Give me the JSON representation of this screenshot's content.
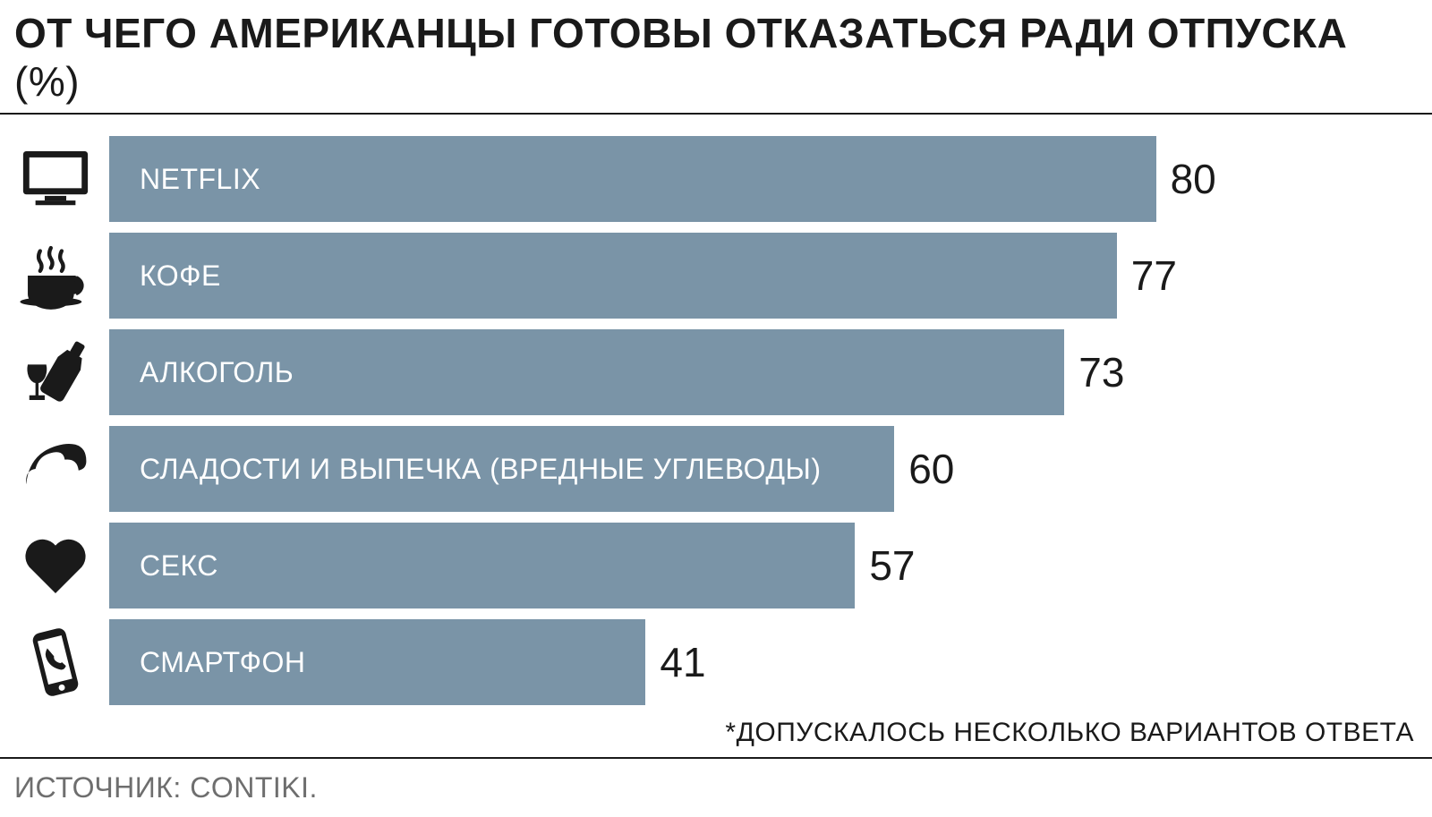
{
  "chart": {
    "type": "bar",
    "title_main": "ОТ ЧЕГО АМЕРИКАНЦЫ ГОТОВЫ ОТКАЗАТЬСЯ РАДИ ОТПУСКА",
    "title_unit": "(%)",
    "title_fontsize": 46,
    "title_color": "#1a1a1a",
    "bar_color": "#7a94a7",
    "bar_label_color": "#ffffff",
    "bar_label_fontsize": 32,
    "value_fontsize": 46,
    "value_color": "#1a1a1a",
    "icon_color": "#1a1a1a",
    "xmax": 100,
    "background_color": "#ffffff",
    "rows": [
      {
        "icon": "tv",
        "label": "NETFLIX",
        "value": 80
      },
      {
        "icon": "coffee",
        "label": "КОФЕ",
        "value": 77
      },
      {
        "icon": "wine",
        "label": "АЛКОГОЛЬ",
        "value": 73
      },
      {
        "icon": "croissant",
        "label": "СЛАДОСТИ И ВЫПЕЧКА (ВРЕДНЫЕ УГЛЕВОДЫ)",
        "value": 60
      },
      {
        "icon": "heart",
        "label": "СЕКС",
        "value": 57
      },
      {
        "icon": "phone",
        "label": "СМАРТФОН",
        "value": 41
      }
    ],
    "footnote": "*ДОПУСКАЛОСЬ НЕСКОЛЬКО ВАРИАНТОВ ОТВЕТА",
    "footnote_fontsize": 30,
    "source": "ИСТОЧНИК: CONTIKI.",
    "source_fontsize": 32,
    "source_color": "#6e6e6e",
    "divider_color": "#1a1a1a"
  }
}
